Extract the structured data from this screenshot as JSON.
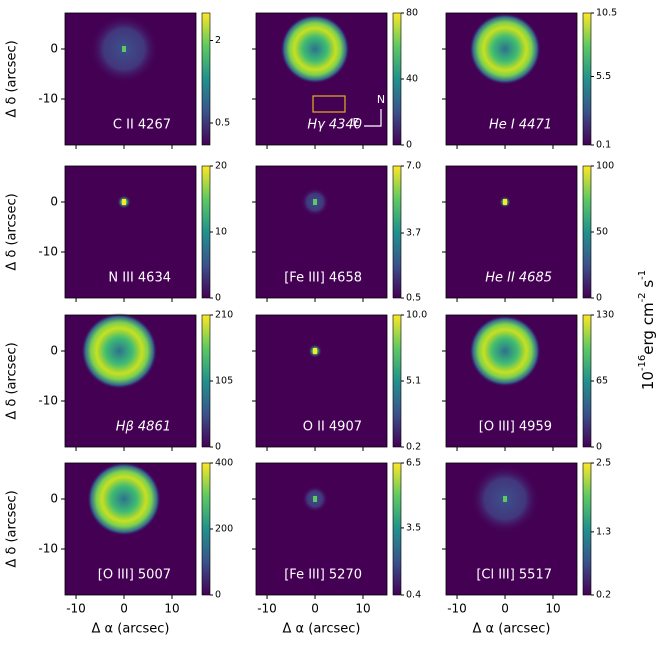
{
  "chart_data": [
    {
      "type": "image",
      "label": "C II 4267",
      "ylabel": "Δ δ (arcsec)",
      "xlim": [
        -12.3,
        15
      ],
      "ylim": [
        -19.2,
        7.2
      ],
      "xticks": [
        -10,
        0,
        10
      ],
      "yticks": [
        -10,
        0
      ],
      "clim": [
        0.1,
        2.5
      ],
      "cticks": [
        0.5,
        2.0
      ]
    },
    {
      "type": "image",
      "label": "Hγ 4340",
      "compass": {
        "north": "N",
        "east": "E"
      },
      "xlim": [
        -12.3,
        15
      ],
      "ylim": [
        -19.2,
        7.2
      ],
      "xticks": [
        -10,
        0,
        10
      ],
      "yticks": [
        -10,
        0
      ],
      "clim": [
        0,
        80
      ],
      "cticks": [
        0,
        40,
        80
      ]
    },
    {
      "type": "image",
      "label": "He I 4471",
      "xlim": [
        -12.3,
        15
      ],
      "ylim": [
        -19.2,
        7.2
      ],
      "xticks": [
        -10,
        0,
        10
      ],
      "yticks": [
        -10,
        0
      ],
      "clim": [
        0.1,
        10.5
      ],
      "cticks": [
        0.1,
        5.5,
        10.5
      ]
    },
    {
      "type": "image",
      "label": "N III 4634",
      "ylabel": "Δ δ (arcsec)",
      "xlim": [
        -12.3,
        15
      ],
      "ylim": [
        -19.2,
        7.2
      ],
      "xticks": [
        -10,
        0,
        10
      ],
      "yticks": [
        -10,
        0
      ],
      "clim": [
        0,
        20
      ],
      "cticks": [
        0,
        10,
        20
      ]
    },
    {
      "type": "image",
      "label": "[Fe III] 4658",
      "xlim": [
        -12.3,
        15
      ],
      "ylim": [
        -19.2,
        7.2
      ],
      "xticks": [
        -10,
        0,
        10
      ],
      "yticks": [
        -10,
        0
      ],
      "clim": [
        0.5,
        7
      ],
      "cticks": [
        0.5,
        3.7,
        {
          "value": 7,
          "label": "7.0"
        }
      ]
    },
    {
      "type": "image",
      "label": "He II 4685",
      "xlim": [
        -12.3,
        15
      ],
      "ylim": [
        -19.2,
        7.2
      ],
      "xticks": [
        -10,
        0,
        10
      ],
      "yticks": [
        -10,
        0
      ],
      "clim": [
        0,
        100
      ],
      "cticks": [
        0,
        50,
        100
      ]
    },
    {
      "type": "image",
      "label": "Hβ 4861",
      "ylabel": "Δ δ (arcsec)",
      "xlim": [
        -12.3,
        15
      ],
      "ylim": [
        -19.2,
        7.2
      ],
      "xticks": [
        -10,
        0,
        10
      ],
      "yticks": [
        -10,
        0
      ],
      "clim": [
        0,
        210
      ],
      "cticks": [
        0,
        105,
        210
      ]
    },
    {
      "type": "image",
      "label": "O II 4907",
      "xlim": [
        -12.3,
        15
      ],
      "ylim": [
        -19.2,
        7.2
      ],
      "xticks": [
        -10,
        0,
        10
      ],
      "yticks": [
        -10,
        0
      ],
      "clim": [
        0.2,
        10
      ],
      "cticks": [
        0.2,
        5.1,
        {
          "value": 10,
          "label": "10.0"
        }
      ]
    },
    {
      "type": "image",
      "label": "[O III] 4959",
      "xlim": [
        -12.3,
        15
      ],
      "ylim": [
        -19.2,
        7.2
      ],
      "xticks": [
        -10,
        0,
        10
      ],
      "yticks": [
        -10,
        0
      ],
      "clim": [
        0,
        130
      ],
      "cticks": [
        0,
        65,
        130
      ]
    },
    {
      "type": "image",
      "label": "[O III] 5007",
      "ylabel": "Δ δ (arcsec)",
      "xlabel": "Δ α (arcsec)",
      "xlim": [
        -12.3,
        15
      ],
      "ylim": [
        -19.2,
        7.2
      ],
      "xticks": [
        -10,
        0,
        10
      ],
      "yticks": [
        -10,
        0
      ],
      "clim": [
        0,
        400
      ],
      "cticks": [
        0,
        200,
        400
      ]
    },
    {
      "type": "image",
      "label": "[Fe III] 5270",
      "xlabel": "Δ α (arcsec)",
      "xlim": [
        -12.3,
        15
      ],
      "ylim": [
        -19.2,
        7.2
      ],
      "xticks": [
        -10,
        0,
        10
      ],
      "yticks": [
        -10,
        0
      ],
      "clim": [
        0.4,
        6.5
      ],
      "cticks": [
        0.4,
        3.5,
        6.5
      ]
    },
    {
      "type": "image",
      "label": "[Cl III] 5517",
      "xlabel": "Δ α (arcsec)",
      "xlim": [
        -12.3,
        15
      ],
      "ylim": [
        -19.2,
        7.2
      ],
      "xticks": [
        -10,
        0,
        10
      ],
      "yticks": [
        -10,
        0
      ],
      "clim": [
        0.2,
        2.5
      ],
      "cticks": [
        0.2,
        1.3,
        2.5
      ]
    }
  ],
  "colorbar_label": {
    "base": "10",
    "exp": "-16",
    "unit1": "erg cm",
    "exp1": "-2",
    "unit2": " s",
    "exp2": "-1"
  }
}
